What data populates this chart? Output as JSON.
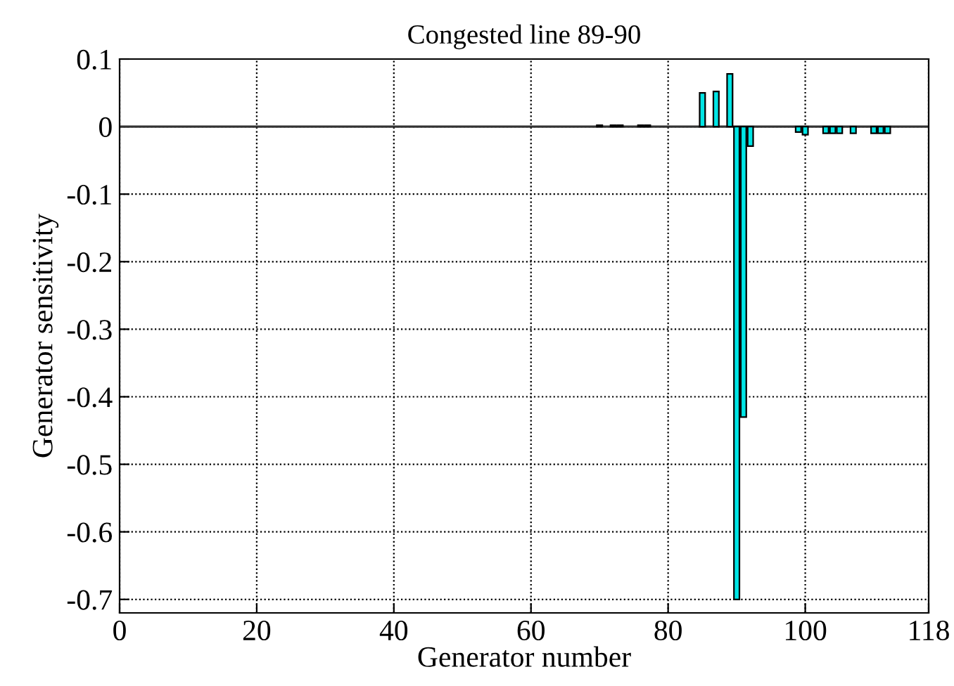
{
  "chart_data": {
    "type": "bar",
    "title": "Congested line 89-90",
    "xlabel": "Generator number",
    "ylabel": "Generator sensitivity",
    "x": [
      70,
      72,
      73,
      76,
      77,
      85,
      87,
      89,
      90,
      91,
      92,
      99,
      100,
      103,
      104,
      105,
      107,
      110,
      111,
      112
    ],
    "values": [
      0.002,
      0.002,
      0.002,
      0.002,
      0.002,
      0.05,
      0.052,
      0.078,
      -0.7,
      -0.43,
      -0.029,
      -0.008,
      -0.012,
      -0.01,
      -0.01,
      -0.01,
      -0.01,
      -0.01,
      -0.01,
      -0.01
    ],
    "color": "#00e5e5",
    "xlim": [
      0,
      118
    ],
    "xticks": [
      0,
      20,
      40,
      60,
      80,
      100,
      118
    ],
    "ylim": [
      -0.72,
      0.1
    ],
    "yticks": [
      0.1,
      0,
      -0.1,
      -0.2,
      -0.3,
      -0.4,
      -0.5,
      -0.6,
      -0.7
    ],
    "grid": true
  }
}
